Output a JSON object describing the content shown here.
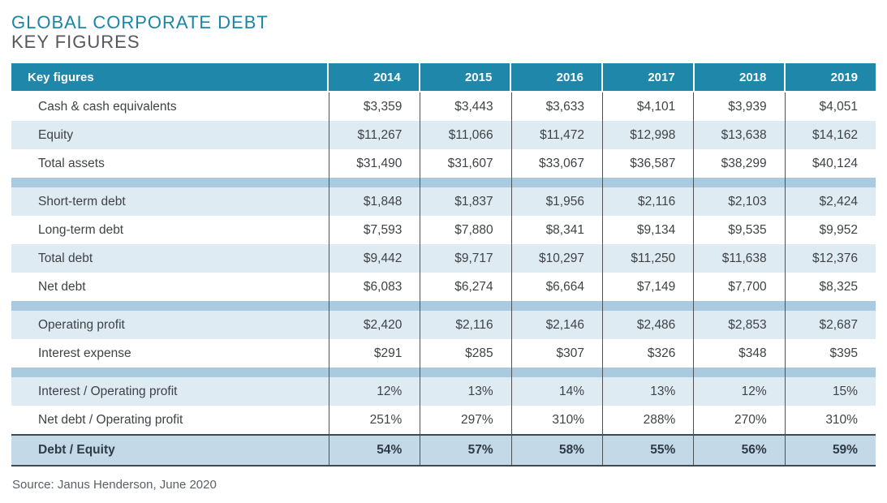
{
  "title": "GLOBAL CORPORATE DEBT",
  "subtitle": "KEY FIGURES",
  "source": "Source: Janus Henderson, June 2020",
  "colors": {
    "header_bg": "#1F87A9",
    "title_teal": "#1985A7",
    "subtitle_gray": "#55575C",
    "row_shade_bg": "#DEEBF3",
    "separator_bg": "#A9CADF",
    "total_row_bg": "#C4D9E8",
    "total_row_border": "#3D4953",
    "column_line": "#4D5256",
    "body_text": "#3F4246"
  },
  "chart_data": {
    "type": "table",
    "title": "GLOBAL CORPORATE DEBT — KEY FIGURES",
    "columns": [
      "Key figures",
      "2014",
      "2015",
      "2016",
      "2017",
      "2018",
      "2019"
    ],
    "rows": [
      [
        "Cash & cash equivalents",
        "$3,359",
        "$3,443",
        "$3,633",
        "$4,101",
        "$3,939",
        "$4,051"
      ],
      [
        "Equity",
        "$11,267",
        "$11,066",
        "$11,472",
        "$12,998",
        "$13,638",
        "$14,162"
      ],
      [
        "Total assets",
        "$31,490",
        "$31,607",
        "$33,067",
        "$36,587",
        "$38,299",
        "$40,124"
      ],
      [
        "Short-term debt",
        "$1,848",
        "$1,837",
        "$1,956",
        "$2,116",
        "$2,103",
        "$2,424"
      ],
      [
        "Long-term debt",
        "$7,593",
        "$7,880",
        "$8,341",
        "$9,134",
        "$9,535",
        "$9,952"
      ],
      [
        "Total debt",
        "$9,442",
        "$9,717",
        "$10,297",
        "$11,250",
        "$11,638",
        "$12,376"
      ],
      [
        "Net debt",
        "$6,083",
        "$6,274",
        "$6,664",
        "$7,149",
        "$7,700",
        "$8,325"
      ],
      [
        "Operating profit",
        "$2,420",
        "$2,116",
        "$2,146",
        "$2,486",
        "$2,853",
        "$2,687"
      ],
      [
        "Interest expense",
        "$291",
        "$285",
        "$307",
        "$326",
        "$348",
        "$395"
      ],
      [
        "Interest / Operating profit",
        "12%",
        "13%",
        "14%",
        "13%",
        "12%",
        "15%"
      ],
      [
        "Net debt / Operating profit",
        "251%",
        "297%",
        "310%",
        "288%",
        "270%",
        "310%"
      ],
      [
        "Debt / Equity",
        "54%",
        "57%",
        "58%",
        "55%",
        "56%",
        "59%"
      ]
    ],
    "source": "Source: Janus Henderson, June 2020"
  },
  "table": {
    "header": {
      "label": "Key figures",
      "years": [
        "2014",
        "2015",
        "2016",
        "2017",
        "2018",
        "2019"
      ]
    },
    "sections": [
      {
        "rows": [
          {
            "label": "Cash & cash equivalents",
            "values": [
              "$3,359",
              "$3,443",
              "$3,633",
              "$4,101",
              "$3,939",
              "$4,051"
            ],
            "shade": false
          },
          {
            "label": "Equity",
            "values": [
              "$11,267",
              "$11,066",
              "$11,472",
              "$12,998",
              "$13,638",
              "$14,162"
            ],
            "shade": true
          },
          {
            "label": "Total assets",
            "values": [
              "$31,490",
              "$31,607",
              "$33,067",
              "$36,587",
              "$38,299",
              "$40,124"
            ],
            "shade": false
          }
        ]
      },
      {
        "rows": [
          {
            "label": "Short-term debt",
            "values": [
              "$1,848",
              "$1,837",
              "$1,956",
              "$2,116",
              "$2,103",
              "$2,424"
            ],
            "shade": true
          },
          {
            "label": "Long-term debt",
            "values": [
              "$7,593",
              "$7,880",
              "$8,341",
              "$9,134",
              "$9,535",
              "$9,952"
            ],
            "shade": false
          },
          {
            "label": "Total debt",
            "values": [
              "$9,442",
              "$9,717",
              "$10,297",
              "$11,250",
              "$11,638",
              "$12,376"
            ],
            "shade": true
          },
          {
            "label": "Net debt",
            "values": [
              "$6,083",
              "$6,274",
              "$6,664",
              "$7,149",
              "$7,700",
              "$8,325"
            ],
            "shade": false
          }
        ]
      },
      {
        "rows": [
          {
            "label": "Operating profit",
            "values": [
              "$2,420",
              "$2,116",
              "$2,146",
              "$2,486",
              "$2,853",
              "$2,687"
            ],
            "shade": true
          },
          {
            "label": "Interest expense",
            "values": [
              "$291",
              "$285",
              "$307",
              "$326",
              "$348",
              "$395"
            ],
            "shade": false
          }
        ]
      },
      {
        "rows": [
          {
            "label": "Interest / Operating profit",
            "values": [
              "12%",
              "13%",
              "14%",
              "13%",
              "12%",
              "15%"
            ],
            "shade": true
          },
          {
            "label": "Net debt / Operating profit",
            "values": [
              "251%",
              "297%",
              "310%",
              "288%",
              "270%",
              "310%"
            ],
            "shade": false
          }
        ]
      }
    ],
    "total_row": {
      "label": "Debt / Equity",
      "values": [
        "54%",
        "57%",
        "58%",
        "55%",
        "56%",
        "59%"
      ]
    }
  }
}
